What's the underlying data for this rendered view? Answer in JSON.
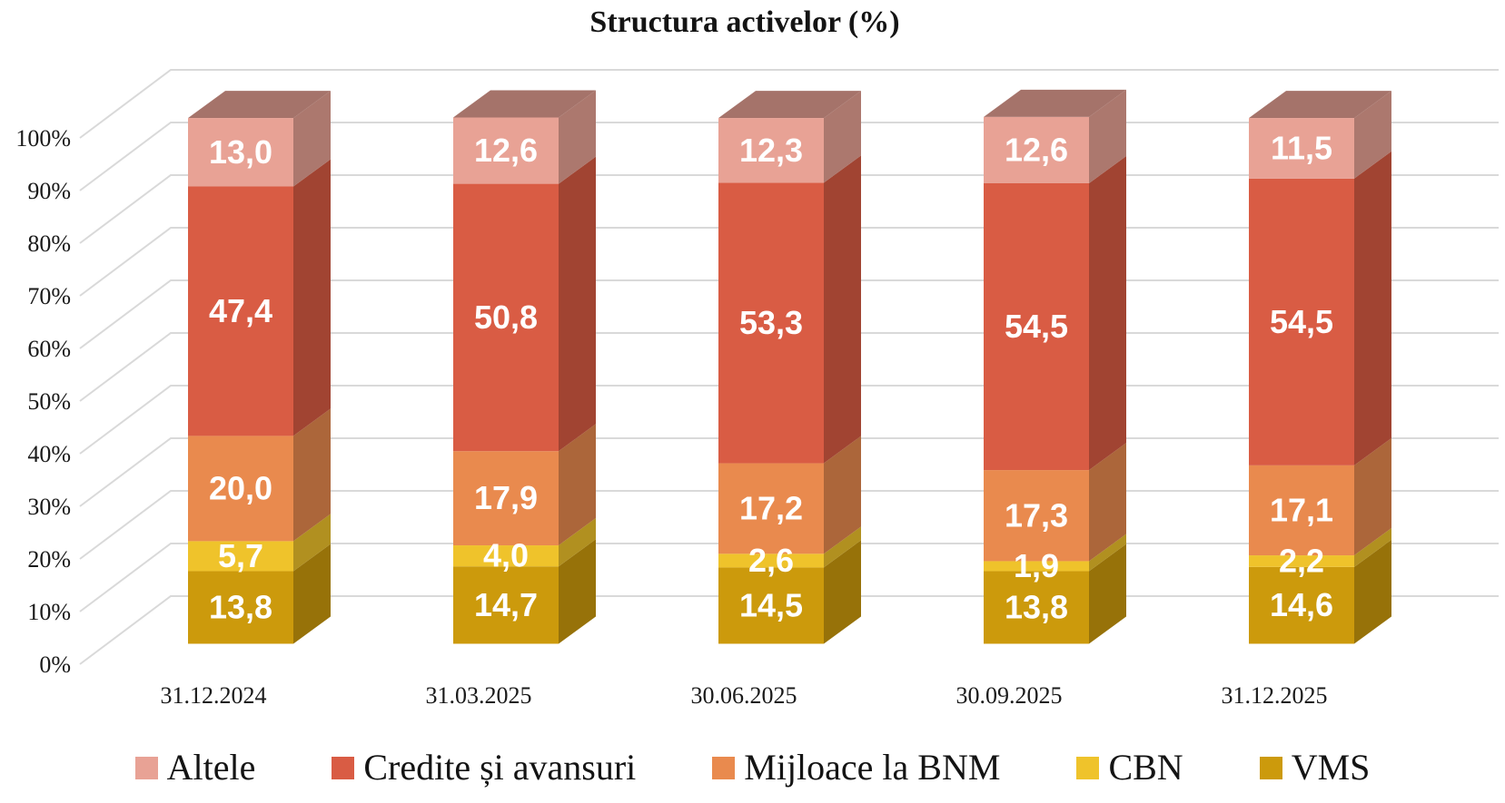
{
  "title": "Structura activelor (%)",
  "chart_data": {
    "type": "bar",
    "stacked": true,
    "effect": "3d",
    "title": "Structura activelor (%)",
    "categories": [
      "31.12.2024",
      "31.03.2025",
      "30.06.2025",
      "30.09.2025",
      "31.12.2025"
    ],
    "series": [
      {
        "name": "VMS",
        "color": "#CC9A0C",
        "values": [
          13.8,
          14.7,
          14.5,
          13.8,
          14.6
        ]
      },
      {
        "name": "CBN",
        "color": "#EFC32B",
        "values": [
          5.7,
          4.0,
          2.6,
          1.9,
          2.2
        ]
      },
      {
        "name": "Mijloace la BNM",
        "color": "#E98A4E",
        "values": [
          20.0,
          17.9,
          17.2,
          17.3,
          17.1
        ]
      },
      {
        "name": "Credite și avansuri",
        "color": "#D95C44",
        "values": [
          47.4,
          50.8,
          53.3,
          54.5,
          54.5
        ]
      },
      {
        "name": "Altele",
        "color": "#E8A295",
        "values": [
          13.0,
          12.6,
          12.3,
          12.6,
          11.5
        ]
      }
    ],
    "legend_order": [
      "Altele",
      "Credite și avansuri",
      "Mijloace la BNM",
      "CBN",
      "VMS"
    ],
    "legend_position": "bottom",
    "y_ticks": [
      "0%",
      "10%",
      "20%",
      "30%",
      "40%",
      "50%",
      "60%",
      "70%",
      "80%",
      "90%",
      "100%"
    ],
    "ylim": [
      0,
      100
    ],
    "grid": true,
    "value_decimal_separator": ","
  },
  "colors": {
    "grid": "#D9D9D9",
    "axis_text": "#1A1A1A",
    "data_label_text": "#FFFFFF"
  }
}
